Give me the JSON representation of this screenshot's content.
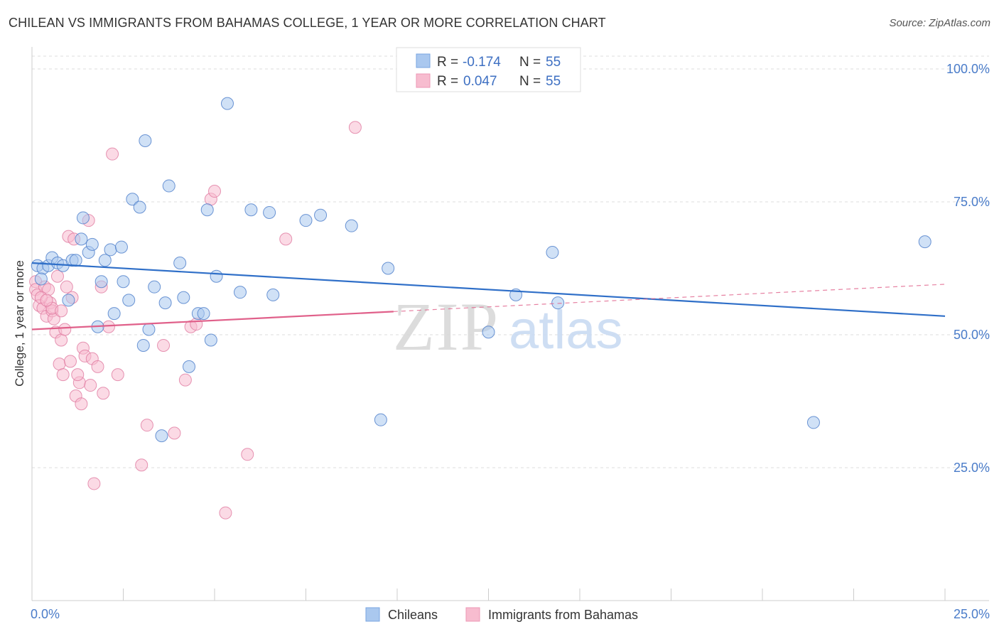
{
  "header": {
    "title": "CHILEAN VS IMMIGRANTS FROM BAHAMAS COLLEGE, 1 YEAR OR MORE CORRELATION CHART",
    "source": "Source: ZipAtlas.com"
  },
  "watermark": {
    "zip": "ZIP",
    "atlas": "atlas"
  },
  "legend": {
    "rows": [
      {
        "r_label": "R =",
        "r_value": "-0.174",
        "n_label": "N =",
        "n_value": "55"
      },
      {
        "r_label": "R =",
        "r_value": "0.047",
        "n_label": "N =",
        "n_value": "55"
      }
    ],
    "bottom": [
      "Chileans",
      "Immigrants from Bahamas"
    ]
  },
  "colors": {
    "blue": "#4a7cc9",
    "blue_fill": "#aac8ef",
    "blue_line": "#2f6fc8",
    "pink": "#e07ba0",
    "pink_fill": "#f7bccf",
    "pink_line": "#e0608a"
  },
  "chart_data": {
    "type": "scatter",
    "title": "CHILEAN VS IMMIGRANTS FROM BAHAMAS COLLEGE, 1 YEAR OR MORE CORRELATION CHART",
    "xlabel": "",
    "ylabel": "College, 1 year or more",
    "xlim": [
      0,
      25
    ],
    "ylim": [
      0,
      102
    ],
    "y_ticks": [
      25,
      50,
      75,
      100
    ],
    "y_tick_labels": [
      "25.0%",
      "50.0%",
      "75.0%",
      "100.0%"
    ],
    "x_tick_labels": [
      "0.0%",
      "25.0%"
    ],
    "grid": true,
    "series": [
      {
        "name": "Chileans",
        "r": -0.174,
        "n": 55,
        "trend": {
          "x": [
            0,
            25
          ],
          "y": [
            63.5,
            53.5
          ]
        },
        "points": [
          [
            0.15,
            63.0
          ],
          [
            0.3,
            62.5
          ],
          [
            0.25,
            60.5
          ],
          [
            0.45,
            63.0
          ],
          [
            0.55,
            64.5
          ],
          [
            0.7,
            63.5
          ],
          [
            0.85,
            63.0
          ],
          [
            1.0,
            56.5
          ],
          [
            1.1,
            64.0
          ],
          [
            1.2,
            64.0
          ],
          [
            1.35,
            68.0
          ],
          [
            1.4,
            72.0
          ],
          [
            1.55,
            65.5
          ],
          [
            1.65,
            67.0
          ],
          [
            1.9,
            60.0
          ],
          [
            2.0,
            64.0
          ],
          [
            2.15,
            66.0
          ],
          [
            2.25,
            54.0
          ],
          [
            2.45,
            66.5
          ],
          [
            2.5,
            60.0
          ],
          [
            2.65,
            56.5
          ],
          [
            2.75,
            75.5
          ],
          [
            2.95,
            74.0
          ],
          [
            3.05,
            48.0
          ],
          [
            3.1,
            86.5
          ],
          [
            3.2,
            51.0
          ],
          [
            3.35,
            59.0
          ],
          [
            3.55,
            31.0
          ],
          [
            3.65,
            56.0
          ],
          [
            3.75,
            78.0
          ],
          [
            4.05,
            63.5
          ],
          [
            4.15,
            57.0
          ],
          [
            4.3,
            44.0
          ],
          [
            4.55,
            54.0
          ],
          [
            4.7,
            54.0
          ],
          [
            4.8,
            73.5
          ],
          [
            4.9,
            49.0
          ],
          [
            5.05,
            61.0
          ],
          [
            5.35,
            93.5
          ],
          [
            5.7,
            58.0
          ],
          [
            6.0,
            73.5
          ],
          [
            6.5,
            73.0
          ],
          [
            6.6,
            57.5
          ],
          [
            7.5,
            71.5
          ],
          [
            7.9,
            72.5
          ],
          [
            8.75,
            70.5
          ],
          [
            9.55,
            34.0
          ],
          [
            9.75,
            62.5
          ],
          [
            12.5,
            50.5
          ],
          [
            13.25,
            57.5
          ],
          [
            14.25,
            65.5
          ],
          [
            14.4,
            56.0
          ],
          [
            21.4,
            33.5
          ],
          [
            24.45,
            67.5
          ],
          [
            1.8,
            51.5
          ]
        ]
      },
      {
        "name": "Immigrants from Bahamas",
        "r": 0.047,
        "n": 55,
        "trend": {
          "x": [
            0,
            25
          ],
          "y": [
            51.0,
            59.5
          ],
          "solid_until_x": 9.9
        },
        "points": [
          [
            0.1,
            60.0
          ],
          [
            0.1,
            58.5
          ],
          [
            0.15,
            57.5
          ],
          [
            0.2,
            55.5
          ],
          [
            0.3,
            55.0
          ],
          [
            0.35,
            59.0
          ],
          [
            0.4,
            53.5
          ],
          [
            0.45,
            58.5
          ],
          [
            0.5,
            56.0
          ],
          [
            0.55,
            54.5
          ],
          [
            0.6,
            53.0
          ],
          [
            0.65,
            50.5
          ],
          [
            0.7,
            61.0
          ],
          [
            0.75,
            44.5
          ],
          [
            0.8,
            49.0
          ],
          [
            0.85,
            42.5
          ],
          [
            0.9,
            51.0
          ],
          [
            0.95,
            59.0
          ],
          [
            1.0,
            68.5
          ],
          [
            1.05,
            45.0
          ],
          [
            1.1,
            57.0
          ],
          [
            1.15,
            68.0
          ],
          [
            1.2,
            38.5
          ],
          [
            1.3,
            41.0
          ],
          [
            1.35,
            37.0
          ],
          [
            1.4,
            47.5
          ],
          [
            1.45,
            46.0
          ],
          [
            1.55,
            71.5
          ],
          [
            1.6,
            40.5
          ],
          [
            1.65,
            45.5
          ],
          [
            1.7,
            22.0
          ],
          [
            1.8,
            44.0
          ],
          [
            1.9,
            59.0
          ],
          [
            1.95,
            39.0
          ],
          [
            2.1,
            51.5
          ],
          [
            2.2,
            84.0
          ],
          [
            2.35,
            42.5
          ],
          [
            3.0,
            25.5
          ],
          [
            3.15,
            33.0
          ],
          [
            3.6,
            48.0
          ],
          [
            3.9,
            31.5
          ],
          [
            4.2,
            41.5
          ],
          [
            4.35,
            51.5
          ],
          [
            4.5,
            52.0
          ],
          [
            4.9,
            75.5
          ],
          [
            5.0,
            77.0
          ],
          [
            5.3,
            16.5
          ],
          [
            5.9,
            27.5
          ],
          [
            6.95,
            68.0
          ],
          [
            8.85,
            89.0
          ],
          [
            0.25,
            57.0
          ],
          [
            0.55,
            55.0
          ],
          [
            1.25,
            42.5
          ],
          [
            0.8,
            54.5
          ],
          [
            0.4,
            56.5
          ]
        ]
      }
    ]
  }
}
